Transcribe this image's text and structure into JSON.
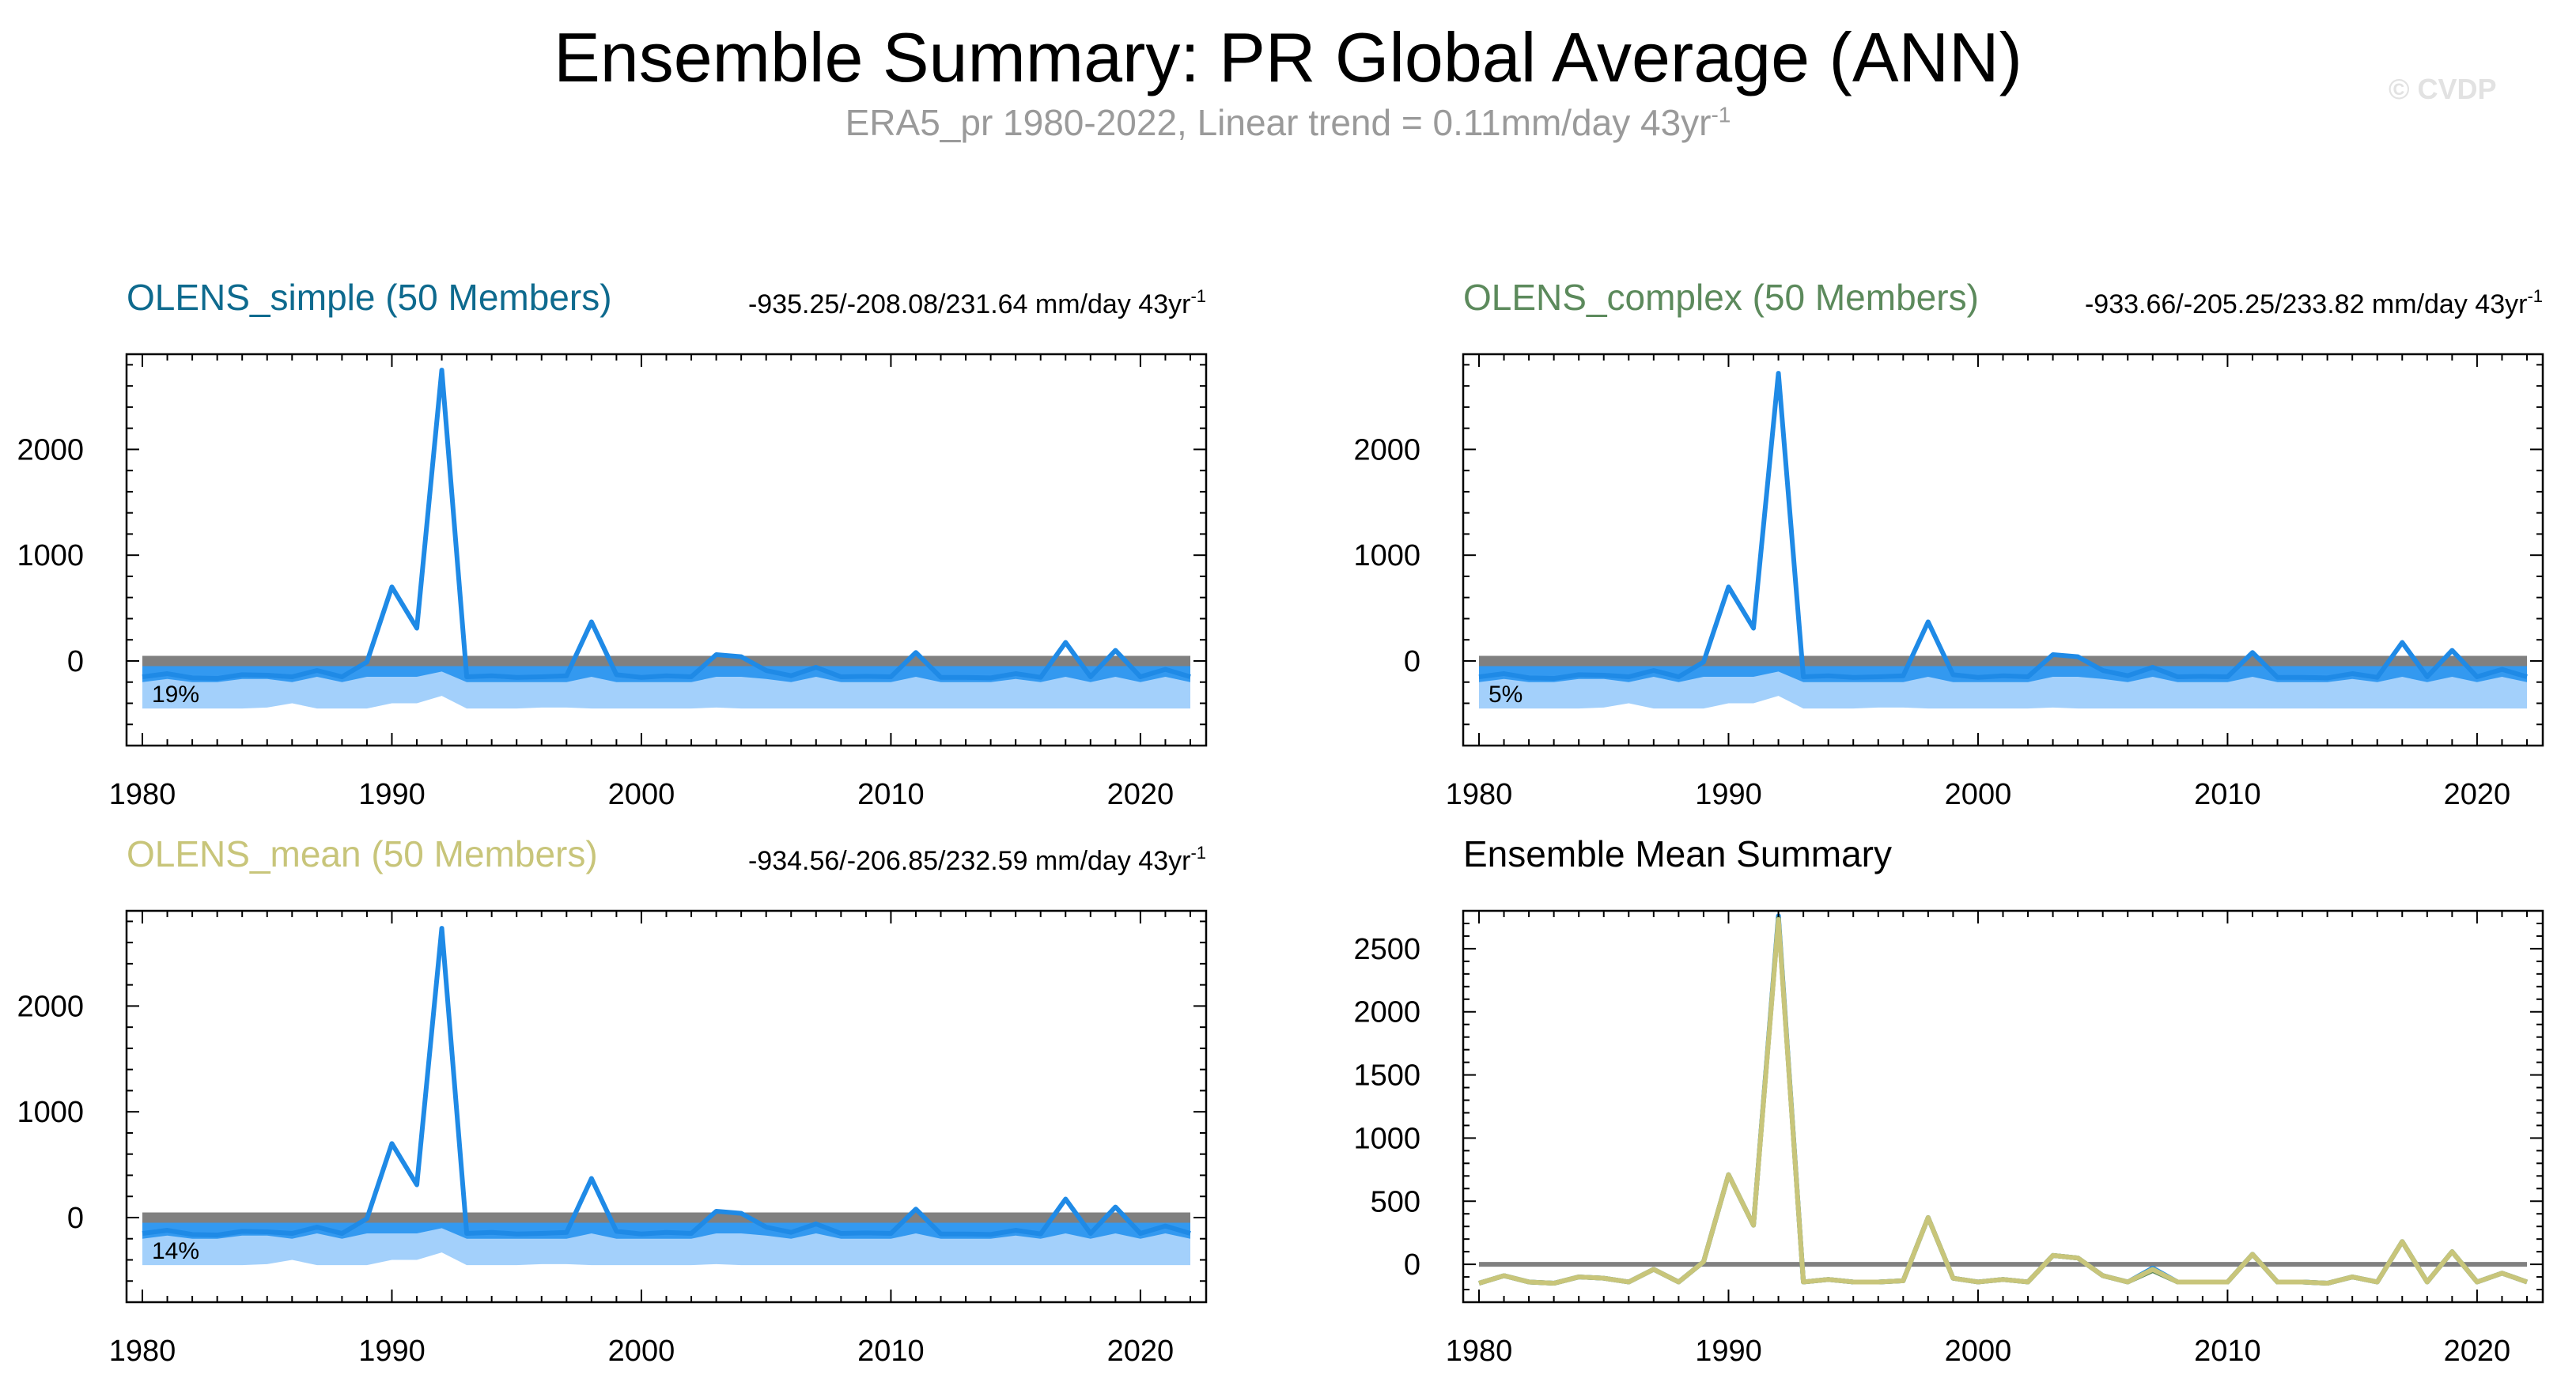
{
  "figure": {
    "title": "Ensemble Summary: PR Global Average (ANN)",
    "subtitle_main": "ERA5_pr 1980-2022, Linear trend = 0.11mm/day 43yr",
    "subtitle_exp": "-1",
    "copyright": "© CVDP"
  },
  "colors": {
    "line_blue": "#1f8ae6",
    "band_dark": "#3399f0",
    "band_light": "#a3d0fb",
    "zero_line": "#808080",
    "olens_simple": "#0e6a8e",
    "olens_complex": "#5c8a5c",
    "olens_mean": "#c8c57a",
    "mean_line": "#c8c57a"
  },
  "chart_data": [
    {
      "type": "line",
      "panel": "top-left",
      "title": "OLENS_simple (50 Members)",
      "title_color": "#0e6a8e",
      "trend_label": "-935.25/-208.08/231.64 mm/day 43yr",
      "trend_exp": "-1",
      "percent_label": "19%",
      "x": [
        1980,
        1981,
        1982,
        1983,
        1984,
        1985,
        1986,
        1987,
        1988,
        1989,
        1990,
        1991,
        1992,
        1993,
        1994,
        1995,
        1996,
        1997,
        1998,
        1999,
        2000,
        2001,
        2002,
        2003,
        2004,
        2005,
        2006,
        2007,
        2008,
        2009,
        2010,
        2011,
        2012,
        2013,
        2014,
        2015,
        2016,
        2017,
        2018,
        2019,
        2020,
        2021,
        2022
      ],
      "y": [
        -150,
        -120,
        -160,
        -165,
        -130,
        -135,
        -150,
        -90,
        -150,
        -10,
        700,
        310,
        2750,
        -150,
        -140,
        -155,
        -150,
        -140,
        370,
        -130,
        -155,
        -140,
        -150,
        60,
        40,
        -90,
        -140,
        -60,
        -150,
        -145,
        -150,
        80,
        -155,
        -155,
        -160,
        -120,
        -155,
        175,
        -150,
        100,
        -150,
        -80,
        -150
      ],
      "band_light": {
        "upper": [
          0,
          0,
          0,
          0,
          0,
          0,
          0,
          0,
          0,
          0,
          0,
          0,
          0,
          0,
          0,
          0,
          0,
          0,
          0,
          0,
          0,
          0,
          0,
          0,
          0,
          0,
          0,
          0,
          0,
          0,
          0,
          0,
          0,
          0,
          0,
          0,
          0,
          0,
          0,
          0,
          0,
          0,
          0
        ],
        "lower": [
          -450,
          -450,
          -450,
          -450,
          -450,
          -440,
          -400,
          -450,
          -450,
          -450,
          -400,
          -400,
          -330,
          -450,
          -450,
          -450,
          -440,
          -440,
          -450,
          -450,
          -450,
          -450,
          -450,
          -440,
          -450,
          -450,
          -450,
          -450,
          -450,
          -450,
          -450,
          -450,
          -450,
          -450,
          -450,
          -450,
          -450,
          -450,
          -450,
          -450,
          -450,
          -450,
          -450
        ]
      },
      "band_dark": {
        "upper": [
          0,
          0,
          0,
          0,
          0,
          0,
          0,
          0,
          0,
          0,
          0,
          0,
          0,
          0,
          0,
          0,
          0,
          0,
          0,
          0,
          0,
          0,
          0,
          0,
          0,
          0,
          0,
          0,
          0,
          0,
          0,
          0,
          0,
          0,
          0,
          0,
          0,
          0,
          0,
          0,
          0,
          0,
          0
        ],
        "lower": [
          -200,
          -170,
          -200,
          -200,
          -170,
          -170,
          -200,
          -150,
          -200,
          -150,
          -150,
          -150,
          -100,
          -200,
          -200,
          -200,
          -200,
          -200,
          -150,
          -200,
          -200,
          -200,
          -200,
          -150,
          -150,
          -170,
          -200,
          -150,
          -200,
          -200,
          -200,
          -150,
          -200,
          -200,
          -200,
          -170,
          -200,
          -150,
          -200,
          -150,
          -200,
          -150,
          -200
        ]
      },
      "xlim": [
        1980,
        2022
      ],
      "ylim": [
        -800,
        2900
      ],
      "yticks": [
        0,
        1000,
        2000
      ],
      "xticks": [
        1980,
        1990,
        2000,
        2010,
        2020
      ],
      "tick_labels_x": [
        "1980",
        "1990",
        "2000",
        "2010",
        "2020"
      ],
      "tick_labels_y": [
        "0",
        "1000",
        "2000"
      ]
    },
    {
      "type": "line",
      "panel": "top-right",
      "title": "OLENS_complex (50 Members)",
      "title_color": "#5c8a5c",
      "trend_label": "-933.66/-205.25/233.82 mm/day 43yr",
      "trend_exp": "-1",
      "percent_label": "5%",
      "x": [
        1980,
        1981,
        1982,
        1983,
        1984,
        1985,
        1986,
        1987,
        1988,
        1989,
        1990,
        1991,
        1992,
        1993,
        1994,
        1995,
        1996,
        1997,
        1998,
        1999,
        2000,
        2001,
        2002,
        2003,
        2004,
        2005,
        2006,
        2007,
        2008,
        2009,
        2010,
        2011,
        2012,
        2013,
        2014,
        2015,
        2016,
        2017,
        2018,
        2019,
        2020,
        2021,
        2022
      ],
      "y": [
        -150,
        -120,
        -160,
        -165,
        -130,
        -135,
        -150,
        -90,
        -150,
        -10,
        700,
        310,
        2720,
        -150,
        -140,
        -155,
        -150,
        -140,
        370,
        -130,
        -155,
        -140,
        -150,
        60,
        40,
        -90,
        -140,
        -60,
        -150,
        -145,
        -150,
        80,
        -155,
        -155,
        -160,
        -120,
        -155,
        175,
        -150,
        100,
        -150,
        -80,
        -150
      ],
      "band_light": {
        "upper": [
          0,
          0,
          0,
          0,
          0,
          0,
          0,
          0,
          0,
          0,
          0,
          0,
          0,
          0,
          0,
          0,
          0,
          0,
          0,
          0,
          0,
          0,
          0,
          0,
          0,
          0,
          0,
          0,
          0,
          0,
          0,
          0,
          0,
          0,
          0,
          0,
          0,
          0,
          0,
          0,
          0,
          0,
          0
        ],
        "lower": [
          -450,
          -450,
          -450,
          -450,
          -450,
          -440,
          -400,
          -450,
          -450,
          -450,
          -400,
          -400,
          -330,
          -450,
          -450,
          -450,
          -440,
          -440,
          -450,
          -450,
          -450,
          -450,
          -450,
          -440,
          -450,
          -450,
          -450,
          -450,
          -450,
          -450,
          -450,
          -450,
          -450,
          -450,
          -450,
          -450,
          -450,
          -450,
          -450,
          -450,
          -450,
          -450,
          -450
        ]
      },
      "band_dark": {
        "upper": [
          0,
          0,
          0,
          0,
          0,
          0,
          0,
          0,
          0,
          0,
          0,
          0,
          0,
          0,
          0,
          0,
          0,
          0,
          0,
          0,
          0,
          0,
          0,
          0,
          0,
          0,
          0,
          0,
          0,
          0,
          0,
          0,
          0,
          0,
          0,
          0,
          0,
          0,
          0,
          0,
          0,
          0,
          0
        ],
        "lower": [
          -200,
          -170,
          -200,
          -200,
          -170,
          -170,
          -200,
          -150,
          -200,
          -150,
          -150,
          -150,
          -100,
          -200,
          -200,
          -200,
          -200,
          -200,
          -150,
          -200,
          -200,
          -200,
          -200,
          -150,
          -150,
          -170,
          -200,
          -150,
          -200,
          -200,
          -200,
          -150,
          -200,
          -200,
          -200,
          -170,
          -200,
          -150,
          -200,
          -150,
          -200,
          -150,
          -200
        ]
      },
      "xlim": [
        1980,
        2022
      ],
      "ylim": [
        -800,
        2900
      ],
      "yticks": [
        0,
        1000,
        2000
      ],
      "xticks": [
        1980,
        1990,
        2000,
        2010,
        2020
      ],
      "tick_labels_x": [
        "1980",
        "1990",
        "2000",
        "2010",
        "2020"
      ],
      "tick_labels_y": [
        "0",
        "1000",
        "2000"
      ]
    },
    {
      "type": "line",
      "panel": "bottom-left",
      "title": "OLENS_mean (50 Members)",
      "title_color": "#c8c57a",
      "trend_label": "-934.56/-206.85/232.59 mm/day 43yr",
      "trend_exp": "-1",
      "percent_label": "14%",
      "x": [
        1980,
        1981,
        1982,
        1983,
        1984,
        1985,
        1986,
        1987,
        1988,
        1989,
        1990,
        1991,
        1992,
        1993,
        1994,
        1995,
        1996,
        1997,
        1998,
        1999,
        2000,
        2001,
        2002,
        2003,
        2004,
        2005,
        2006,
        2007,
        2008,
        2009,
        2010,
        2011,
        2012,
        2013,
        2014,
        2015,
        2016,
        2017,
        2018,
        2019,
        2020,
        2021,
        2022
      ],
      "y": [
        -150,
        -120,
        -160,
        -165,
        -130,
        -135,
        -150,
        -90,
        -150,
        -10,
        700,
        310,
        2735,
        -150,
        -140,
        -155,
        -150,
        -140,
        370,
        -130,
        -155,
        -140,
        -150,
        60,
        40,
        -90,
        -140,
        -60,
        -150,
        -145,
        -150,
        80,
        -155,
        -155,
        -160,
        -120,
        -155,
        175,
        -150,
        100,
        -150,
        -80,
        -150
      ],
      "band_light": {
        "upper": [
          0,
          0,
          0,
          0,
          0,
          0,
          0,
          0,
          0,
          0,
          0,
          0,
          0,
          0,
          0,
          0,
          0,
          0,
          0,
          0,
          0,
          0,
          0,
          0,
          0,
          0,
          0,
          0,
          0,
          0,
          0,
          0,
          0,
          0,
          0,
          0,
          0,
          0,
          0,
          0,
          0,
          0,
          0
        ],
        "lower": [
          -450,
          -450,
          -450,
          -450,
          -450,
          -440,
          -400,
          -450,
          -450,
          -450,
          -400,
          -400,
          -330,
          -450,
          -450,
          -450,
          -440,
          -440,
          -450,
          -450,
          -450,
          -450,
          -450,
          -440,
          -450,
          -450,
          -450,
          -450,
          -450,
          -450,
          -450,
          -450,
          -450,
          -450,
          -450,
          -450,
          -450,
          -450,
          -450,
          -450,
          -450,
          -450,
          -450
        ]
      },
      "band_dark": {
        "upper": [
          0,
          0,
          0,
          0,
          0,
          0,
          0,
          0,
          0,
          0,
          0,
          0,
          0,
          0,
          0,
          0,
          0,
          0,
          0,
          0,
          0,
          0,
          0,
          0,
          0,
          0,
          0,
          0,
          0,
          0,
          0,
          0,
          0,
          0,
          0,
          0,
          0,
          0,
          0,
          0,
          0,
          0,
          0
        ],
        "lower": [
          -200,
          -170,
          -200,
          -200,
          -170,
          -170,
          -200,
          -150,
          -200,
          -150,
          -150,
          -150,
          -100,
          -200,
          -200,
          -200,
          -200,
          -200,
          -150,
          -200,
          -200,
          -200,
          -200,
          -150,
          -150,
          -170,
          -200,
          -150,
          -200,
          -200,
          -200,
          -150,
          -200,
          -200,
          -200,
          -170,
          -200,
          -150,
          -200,
          -150,
          -200,
          -150,
          -200
        ]
      },
      "xlim": [
        1980,
        2022
      ],
      "ylim": [
        -800,
        2900
      ],
      "yticks": [
        0,
        1000,
        2000
      ],
      "xticks": [
        1980,
        1990,
        2000,
        2010,
        2020
      ],
      "tick_labels_x": [
        "1980",
        "1990",
        "2000",
        "2010",
        "2020"
      ],
      "tick_labels_y": [
        "0",
        "1000",
        "2000"
      ]
    },
    {
      "type": "line",
      "panel": "bottom-right",
      "title": "Ensemble Mean Summary",
      "title_color": "#000000",
      "x": [
        1980,
        1981,
        1982,
        1983,
        1984,
        1985,
        1986,
        1987,
        1988,
        1989,
        1990,
        1991,
        1992,
        1993,
        1994,
        1995,
        1996,
        1997,
        1998,
        1999,
        2000,
        2001,
        2002,
        2003,
        2004,
        2005,
        2006,
        2007,
        2008,
        2009,
        2010,
        2011,
        2012,
        2013,
        2014,
        2015,
        2016,
        2017,
        2018,
        2019,
        2020,
        2021,
        2022
      ],
      "series": [
        {
          "name": "OLENS_simple",
          "color": "#1f8ae6",
          "values": [
            -150,
            -90,
            -140,
            -150,
            -100,
            -110,
            -140,
            -40,
            -140,
            20,
            710,
            310,
            2760,
            -140,
            -120,
            -140,
            -140,
            -130,
            370,
            -110,
            -140,
            -120,
            -140,
            70,
            50,
            -90,
            -140,
            -30,
            -140,
            -140,
            -140,
            80,
            -140,
            -140,
            -150,
            -100,
            -140,
            180,
            -140,
            100,
            -140,
            -70,
            -140
          ]
        },
        {
          "name": "OLENS_complex",
          "color": "#5c8a5c",
          "values": [
            -150,
            -90,
            -140,
            -150,
            -100,
            -110,
            -140,
            -40,
            -140,
            20,
            710,
            310,
            2740,
            -140,
            -120,
            -140,
            -140,
            -130,
            370,
            -110,
            -140,
            -120,
            -140,
            70,
            50,
            -90,
            -140,
            -50,
            -140,
            -140,
            -140,
            80,
            -140,
            -140,
            -150,
            -100,
            -140,
            180,
            -140,
            100,
            -140,
            -70,
            -140
          ]
        },
        {
          "name": "OLENS_mean",
          "color": "#c8c57a",
          "values": [
            -150,
            -90,
            -140,
            -150,
            -100,
            -110,
            -140,
            -40,
            -140,
            20,
            710,
            310,
            2730,
            -140,
            -120,
            -140,
            -140,
            -130,
            370,
            -110,
            -140,
            -120,
            -140,
            70,
            50,
            -90,
            -140,
            -40,
            -140,
            -140,
            -140,
            80,
            -140,
            -140,
            -150,
            -100,
            -140,
            180,
            -140,
            100,
            -140,
            -70,
            -140
          ]
        }
      ],
      "xlim": [
        1980,
        2022
      ],
      "ylim": [
        -300,
        2800
      ],
      "yticks": [
        0,
        500,
        1000,
        1500,
        2000,
        2500
      ],
      "xticks": [
        1980,
        1990,
        2000,
        2010,
        2020
      ],
      "tick_labels_x": [
        "1980",
        "1990",
        "2000",
        "2010",
        "2020"
      ],
      "tick_labels_y": [
        "0",
        "500",
        "1000",
        "1500",
        "2000",
        "2500"
      ]
    }
  ]
}
